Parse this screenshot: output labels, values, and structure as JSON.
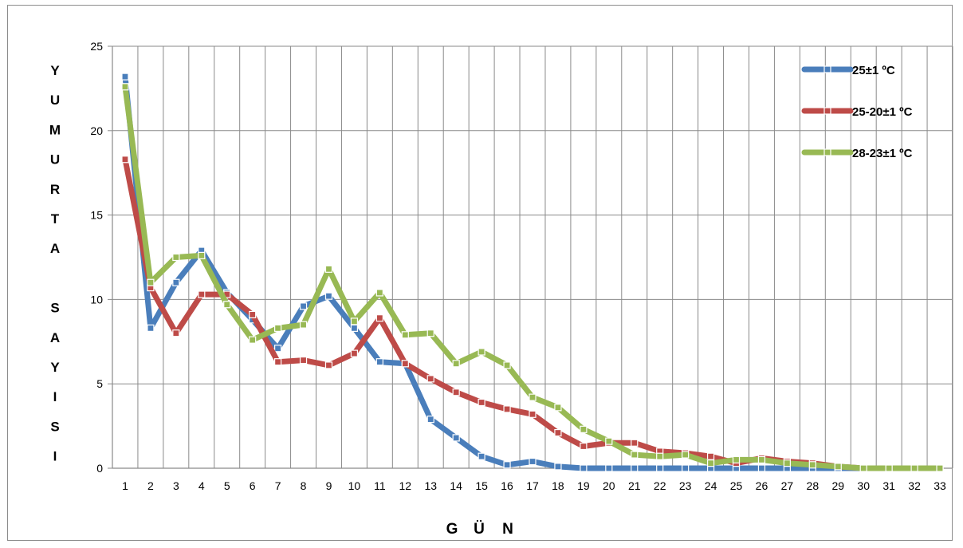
{
  "chart_data": {
    "type": "line",
    "title": "",
    "xlabel": "G Ü N",
    "ylabel": "YUMURTA SAYISI",
    "ylabel_lines": [
      "Y",
      "U",
      "M",
      "U",
      "R",
      "T",
      "A",
      "",
      "S",
      "A",
      "Y",
      "I",
      "S",
      "I"
    ],
    "xlabel_letters": [
      "G",
      "Ü",
      "N"
    ],
    "x": [
      1,
      2,
      3,
      4,
      5,
      6,
      7,
      8,
      9,
      10,
      11,
      12,
      13,
      14,
      15,
      16,
      17,
      18,
      19,
      20,
      21,
      22,
      23,
      24,
      25,
      26,
      27,
      28,
      29,
      30,
      31,
      32,
      33
    ],
    "ylim": [
      0,
      25
    ],
    "yticks": [
      0,
      5,
      10,
      15,
      20,
      25
    ],
    "grid": true,
    "legend_position": "top-right",
    "series": [
      {
        "name": "25±1 ºC",
        "color": "#4a7ebb",
        "values": [
          23.2,
          8.3,
          11.0,
          12.9,
          10.4,
          8.8,
          7.1,
          9.6,
          10.2,
          8.3,
          6.3,
          6.2,
          2.9,
          1.8,
          0.7,
          0.2,
          0.4,
          0.1,
          0.0,
          0.0,
          0.0,
          0.0,
          0.0,
          0.0,
          0.0,
          0.0,
          0.0,
          0.0,
          0.0,
          0.0,
          0.0,
          0.0,
          0.0
        ]
      },
      {
        "name": "25-20±1 ºC",
        "color": "#be4b48",
        "values": [
          18.3,
          10.7,
          8.0,
          10.3,
          10.3,
          9.1,
          6.3,
          6.4,
          6.1,
          6.8,
          8.9,
          6.2,
          5.3,
          4.5,
          3.9,
          3.5,
          3.2,
          2.1,
          1.3,
          1.5,
          1.5,
          1.0,
          0.9,
          0.7,
          0.3,
          0.6,
          0.4,
          0.3,
          0.1,
          0.0,
          0.0,
          0.0,
          0.0
        ]
      },
      {
        "name": "28-23±1 ºC",
        "color": "#98b954",
        "values": [
          22.6,
          11.0,
          12.5,
          12.6,
          9.7,
          7.6,
          8.3,
          8.5,
          11.8,
          8.7,
          10.4,
          7.9,
          8.0,
          6.2,
          6.9,
          6.1,
          4.2,
          3.6,
          2.3,
          1.6,
          0.8,
          0.7,
          0.8,
          0.3,
          0.5,
          0.5,
          0.3,
          0.2,
          0.1,
          0.0,
          0.0,
          0.0,
          0.0
        ]
      }
    ]
  }
}
